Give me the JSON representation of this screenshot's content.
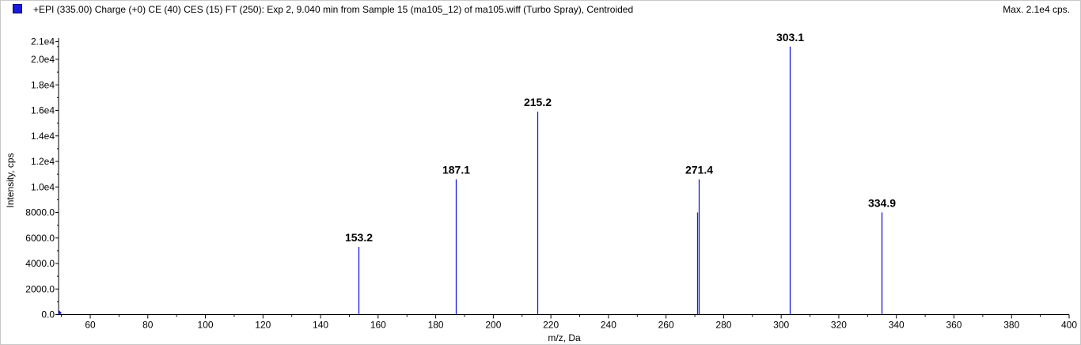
{
  "header": {
    "title": "+EPI (335.00) Charge (+0) CE (40) CES (15) FT (250): Exp 2, 9.040 min from Sample 15 (ma105_12) of ma105.wiff (Turbo Spray), Centroided",
    "max_label": "Max. 2.1e4 cps."
  },
  "colors": {
    "series": "#1a1adc",
    "axis": "#000000"
  },
  "chart_data": {
    "type": "bar",
    "title": "+EPI (335.00) Charge (+0) CE (40) CES (15) FT (250): Exp 2, 9.040 min from Sample 15 (ma105_12) of ma105.wiff (Turbo Spray), Centroided",
    "xlabel": "m/z, Da",
    "ylabel": "Intensity, cps",
    "xlim": [
      49,
      400
    ],
    "ylim": [
      0,
      21000
    ],
    "x_ticks": [
      60,
      80,
      100,
      120,
      140,
      160,
      180,
      200,
      220,
      240,
      260,
      280,
      300,
      320,
      340,
      360,
      380,
      400
    ],
    "y_ticks": [
      {
        "value": 0,
        "label": "0.0"
      },
      {
        "value": 2000,
        "label": "2000.0"
      },
      {
        "value": 4000,
        "label": "4000.0"
      },
      {
        "value": 6000,
        "label": "6000.0"
      },
      {
        "value": 8000,
        "label": "8000.0"
      },
      {
        "value": 10000,
        "label": "1.0e4"
      },
      {
        "value": 12000,
        "label": "1.2e4"
      },
      {
        "value": 14000,
        "label": "1.4e4"
      },
      {
        "value": 16000,
        "label": "1.6e4"
      },
      {
        "value": 18000,
        "label": "1.8e4"
      },
      {
        "value": 20000,
        "label": "2.0e4"
      },
      {
        "value": 21400,
        "label": "2.1e4"
      }
    ],
    "peaks": [
      {
        "mz": 153.2,
        "intensity": 5300,
        "label": "153.2"
      },
      {
        "mz": 187.1,
        "intensity": 10600,
        "label": "187.1"
      },
      {
        "mz": 215.2,
        "intensity": 15900,
        "label": "215.2"
      },
      {
        "mz": 270.9,
        "intensity": 8000,
        "label": ""
      },
      {
        "mz": 271.4,
        "intensity": 10600,
        "label": "271.4"
      },
      {
        "mz": 303.1,
        "intensity": 21000,
        "label": "303.1"
      },
      {
        "mz": 334.9,
        "intensity": 8000,
        "label": "334.9"
      }
    ],
    "grid": false,
    "legend": "top-left"
  }
}
